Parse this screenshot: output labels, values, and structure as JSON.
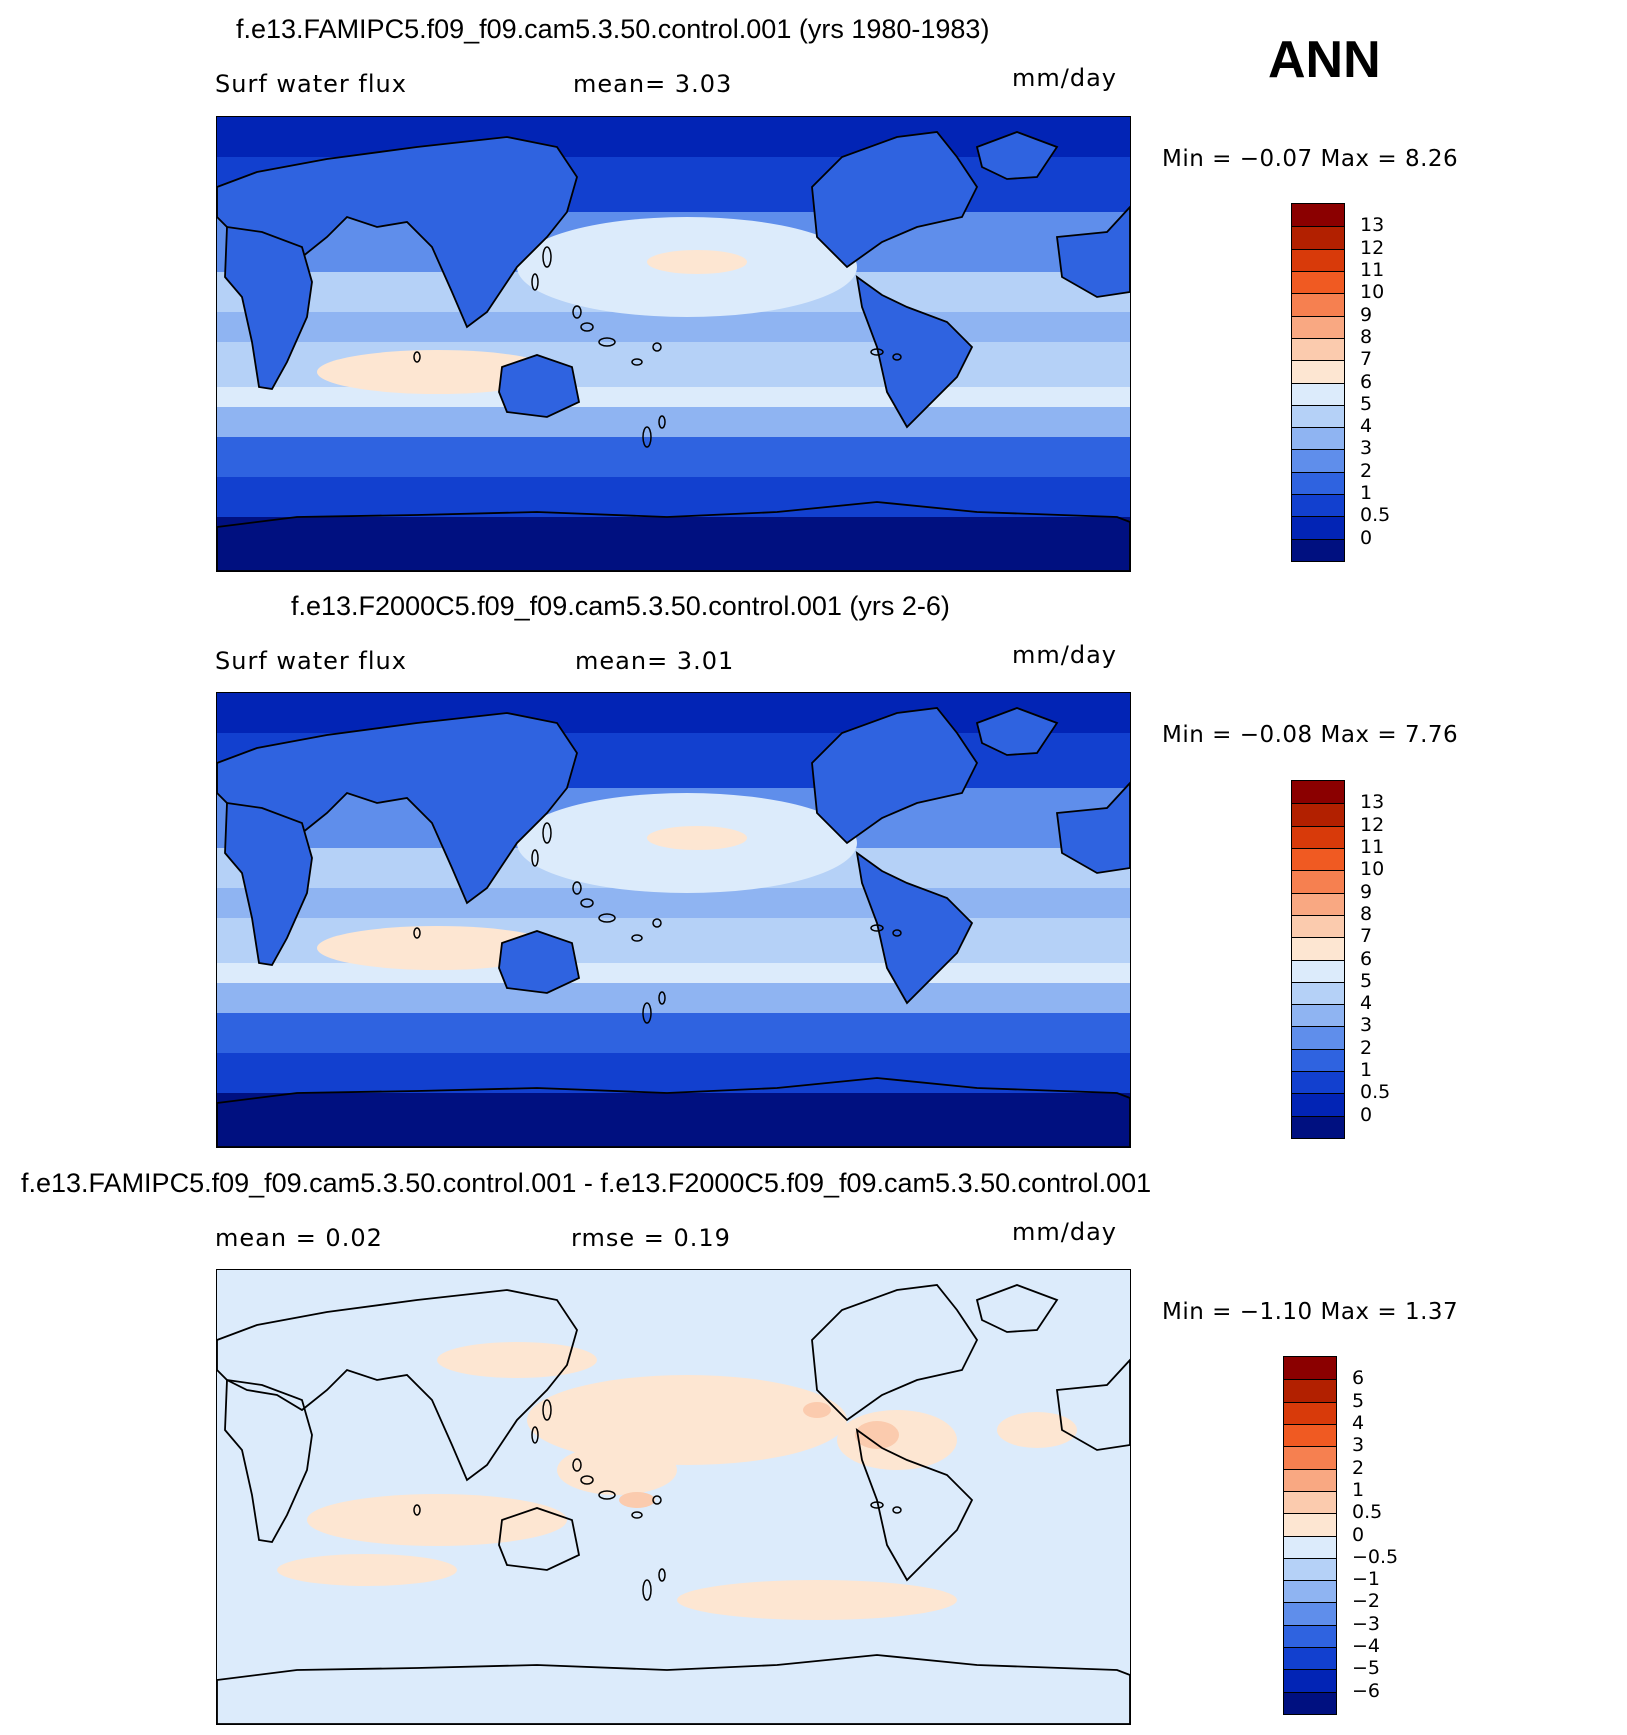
{
  "season": "ANN",
  "panels": [
    {
      "title": "f.e13.FAMIPC5.f09_f09.cam5.3.50.control.001 (yrs 1980-1983)",
      "left_label": "Surf  water  flux",
      "center_label": "mean=     3.03",
      "units": "mm/day",
      "minmax": "Min  =    −0.07  Max  =      8.26",
      "colorbar": {
        "labels": [
          "13",
          "12",
          "11",
          "10",
          "9",
          "8",
          "7",
          "6",
          "5",
          "4",
          "3",
          "2",
          "1",
          "0.5",
          "0"
        ],
        "colors": [
          "#8B0000",
          "#B22000",
          "#D83A0A",
          "#F05A22",
          "#F68050",
          "#F9A882",
          "#FBCBAE",
          "#FDE6D2",
          "#DCEBFB",
          "#B5D1F7",
          "#8FB4F2",
          "#5F8EEB",
          "#2F63E0",
          "#1240CF",
          "#0224B5",
          "#001080"
        ]
      },
      "chart_data": {
        "type": "heatmap",
        "title": "f.e13.FAMIPC5.f09_f09.cam5.3.50.control.001 (yrs 1980-1983)",
        "variable": "Surf water flux",
        "units": "mm/day",
        "mean": 3.03,
        "min": -0.07,
        "max": 8.26,
        "contour_levels": [
          0,
          0.5,
          1,
          2,
          3,
          4,
          5,
          6,
          7,
          8,
          9,
          10,
          11,
          12,
          13
        ]
      }
    },
    {
      "title": "f.e13.F2000C5.f09_f09.cam5.3.50.control.001 (yrs 2-6)",
      "left_label": "Surf  water  flux",
      "center_label": "mean=     3.01",
      "units": "mm/day",
      "minmax": "Min  =    −0.08  Max  =      7.76",
      "colorbar": {
        "labels": [
          "13",
          "12",
          "11",
          "10",
          "9",
          "8",
          "7",
          "6",
          "5",
          "4",
          "3",
          "2",
          "1",
          "0.5",
          "0"
        ],
        "colors": [
          "#8B0000",
          "#B22000",
          "#D83A0A",
          "#F05A22",
          "#F68050",
          "#F9A882",
          "#FBCBAE",
          "#FDE6D2",
          "#DCEBFB",
          "#B5D1F7",
          "#8FB4F2",
          "#5F8EEB",
          "#2F63E0",
          "#1240CF",
          "#0224B5",
          "#001080"
        ]
      },
      "chart_data": {
        "type": "heatmap",
        "title": "f.e13.F2000C5.f09_f09.cam5.3.50.control.001 (yrs 2-6)",
        "variable": "Surf water flux",
        "units": "mm/day",
        "mean": 3.01,
        "min": -0.08,
        "max": 7.76,
        "contour_levels": [
          0,
          0.5,
          1,
          2,
          3,
          4,
          5,
          6,
          7,
          8,
          9,
          10,
          11,
          12,
          13
        ]
      }
    },
    {
      "title": "f.e13.FAMIPC5.f09_f09.cam5.3.50.control.001 - f.e13.F2000C5.f09_f09.cam5.3.50.control.001",
      "left_label": "mean  =      0.02",
      "center_label": "rmse  =      0.19",
      "units": "mm/day",
      "minmax": "Min  =    −1.10  Max  =      1.37",
      "colorbar": {
        "labels": [
          "6",
          "5",
          "4",
          "3",
          "2",
          "1",
          "0.5",
          "0",
          "−0.5",
          "−1",
          "−2",
          "−3",
          "−4",
          "−5",
          "−6"
        ],
        "colors": [
          "#8B0000",
          "#B22000",
          "#D83A0A",
          "#F05A22",
          "#F68050",
          "#F9A882",
          "#FBCBAE",
          "#FDE6D2",
          "#DCEBFB",
          "#B5D1F7",
          "#8FB4F2",
          "#5F8EEB",
          "#2F63E0",
          "#1240CF",
          "#0224B5",
          "#001080"
        ]
      },
      "chart_data": {
        "type": "heatmap",
        "title": "f.e13.FAMIPC5.f09_f09.cam5.3.50.control.001 - f.e13.F2000C5.f09_f09.cam5.3.50.control.001",
        "units": "mm/day",
        "mean": 0.02,
        "rmse": 0.19,
        "min": -1.1,
        "max": 1.37,
        "contour_levels": [
          -6,
          -5,
          -4,
          -3,
          -2,
          -1,
          -0.5,
          0,
          0.5,
          1,
          2,
          3,
          4,
          5,
          6
        ]
      }
    }
  ]
}
